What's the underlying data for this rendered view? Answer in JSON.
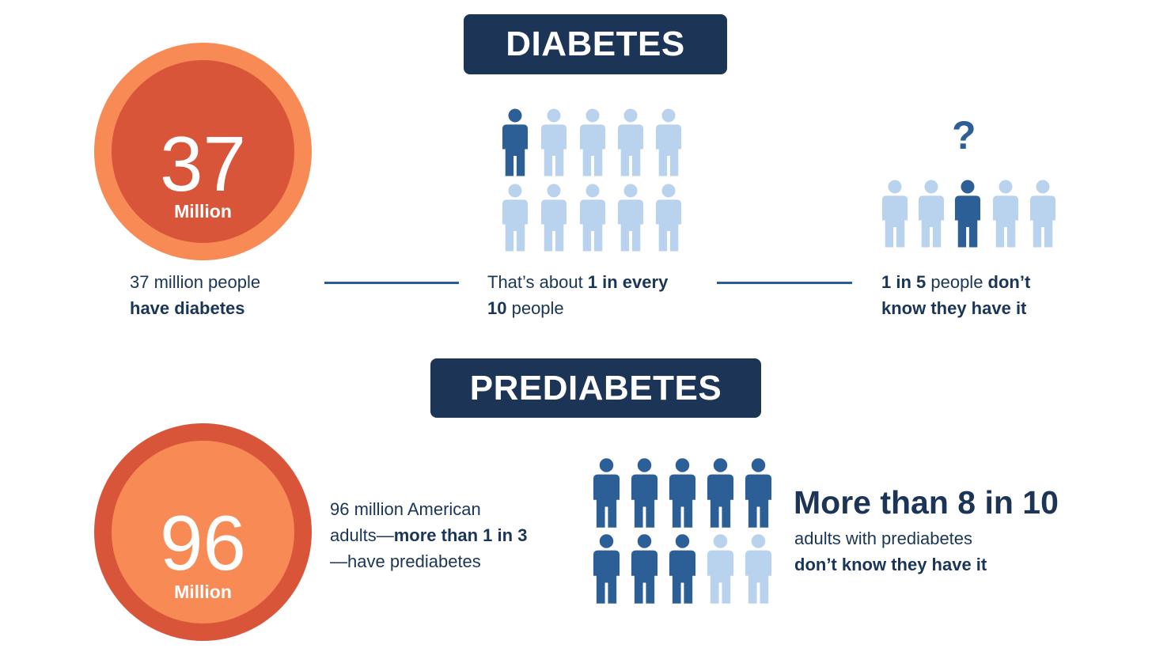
{
  "sections": {
    "diabetes": {
      "title": "DIABETES",
      "big_number": "37",
      "big_unit": "Million",
      "caption1": {
        "normal": "37 million people",
        "bold": "have diabetes"
      },
      "caption2": {
        "normal1": "That’s about ",
        "bold1": "1 in every",
        "bold2": "10",
        "normal2": " people"
      },
      "caption3": {
        "bold1": "1 in 5",
        "normal1": " people ",
        "bold2": "don’t",
        "bold3": "know they have it"
      },
      "question_mark": "?",
      "ratio_1_in_10": {
        "highlighted": 1,
        "total": 10
      },
      "ratio_1_in_5": {
        "highlighted": 1,
        "total": 5
      }
    },
    "prediabetes": {
      "title": "PREDIABETES",
      "big_number": "96",
      "big_unit": "Million",
      "caption": {
        "line1": "96 million American",
        "line2_normal": "adults—",
        "line2_bold": "more than 1 in 3",
        "line3": "—have prediabetes"
      },
      "headline": "More than 8 in 10",
      "sub_line1": "adults with prediabetes",
      "sub_line2": "don’t know they have it",
      "ratio_8_in_10": {
        "highlighted": 8,
        "total": 10
      }
    }
  },
  "colors": {
    "navy": "#1c3455",
    "dark_blue_person": "#2c5f96",
    "light_blue_person": "#b9d2ee",
    "orange_light": "#f78a55",
    "orange_dark": "#d9553a",
    "connector": "#2a5d93"
  },
  "icons": [
    "person-icon",
    "question-mark-icon"
  ]
}
